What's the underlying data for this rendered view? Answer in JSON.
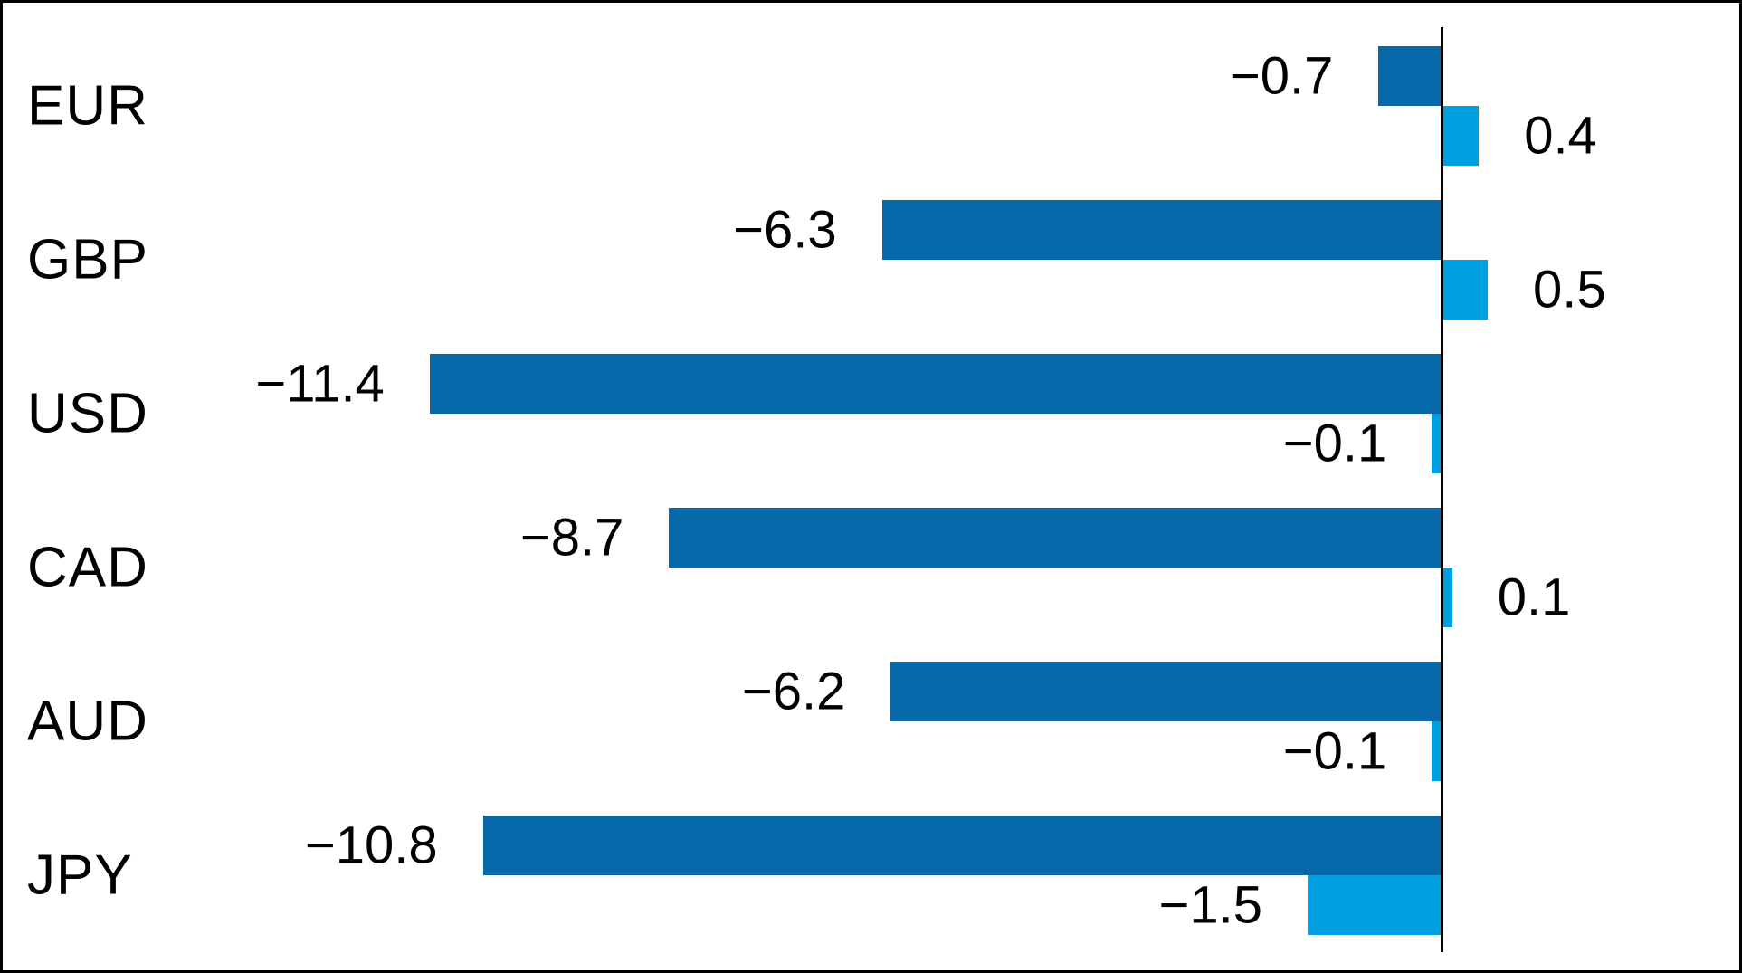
{
  "chart_data": {
    "type": "bar",
    "orientation": "horizontal",
    "title": "",
    "categories": [
      "EUR",
      "GBP",
      "USD",
      "CAD",
      "AUD",
      "JPY"
    ],
    "series": [
      {
        "name": "dark-blue-series",
        "color": "#0768a9",
        "values": [
          -0.7,
          -6.3,
          -11.4,
          -8.7,
          -6.2,
          -10.8
        ],
        "labels": [
          "−0.7",
          "−6.3",
          "−11.4",
          "−8.7",
          "−6.2",
          "−10.8"
        ]
      },
      {
        "name": "light-blue-series",
        "color": "#009fe0",
        "values": [
          0.4,
          0.5,
          -0.1,
          0.1,
          -0.1,
          -1.5
        ],
        "labels": [
          "0.4",
          "0.5",
          "−0.1",
          "0.1",
          "−0.1",
          "−1.5"
        ]
      }
    ],
    "value_axis": {
      "zero_line": true,
      "range": [
        -16.2,
        3.4
      ],
      "grid": "off",
      "tick_labels": "none"
    },
    "legend": "none",
    "colors": {
      "series_dark": "#0768a9",
      "series_light": "#009fe0",
      "axis_line": "#000000",
      "text": "#000000",
      "background": "#ffffff",
      "frame_border": "#000000"
    }
  }
}
